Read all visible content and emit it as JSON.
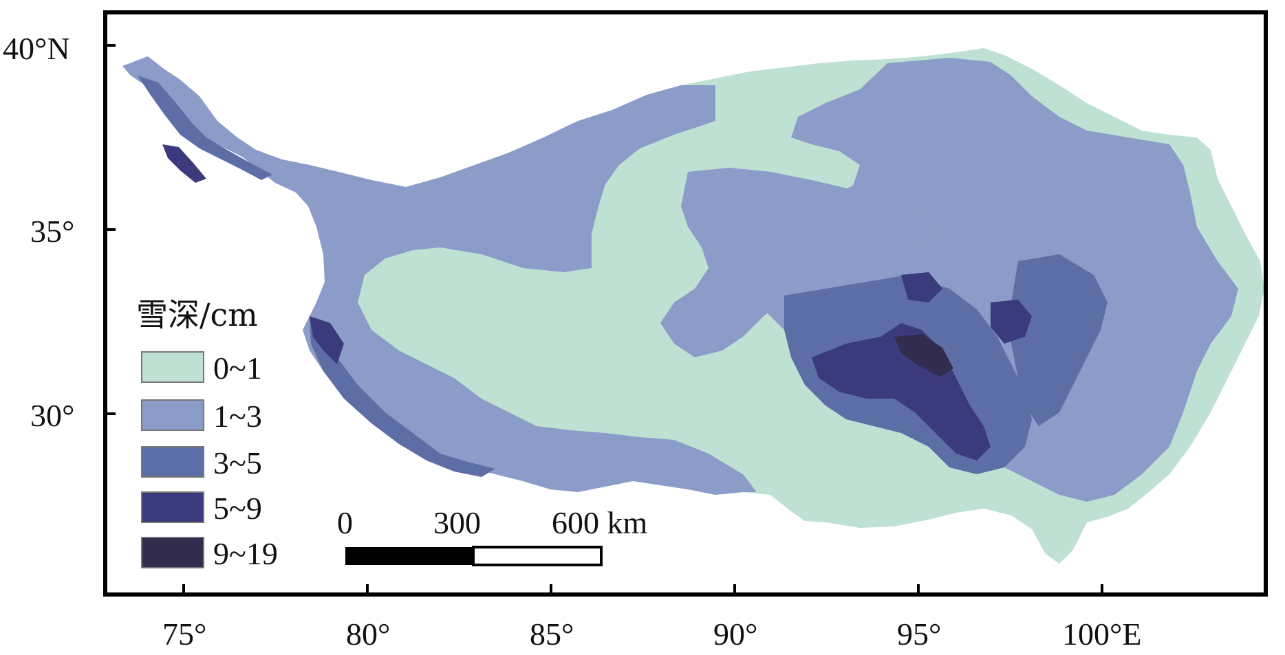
{
  "axes": {
    "x_ticks": [
      "75°",
      "80°",
      "85°",
      "90°",
      "95°",
      "100°E"
    ],
    "y_ticks": [
      "40°N",
      "35°",
      "30°"
    ]
  },
  "legend": {
    "title": "雪深/cm",
    "classes": [
      {
        "label": "0~1",
        "color": "#bfe1d4"
      },
      {
        "label": "1~3",
        "color": "#8b9cc8"
      },
      {
        "label": "3~5",
        "color": "#5d6ea6"
      },
      {
        "label": "5~9",
        "color": "#3b3a7c"
      },
      {
        "label": "9~19",
        "color": "#322c4e"
      }
    ]
  },
  "scale_bar": {
    "ticks": [
      "0",
      "300",
      "600 km"
    ]
  }
}
